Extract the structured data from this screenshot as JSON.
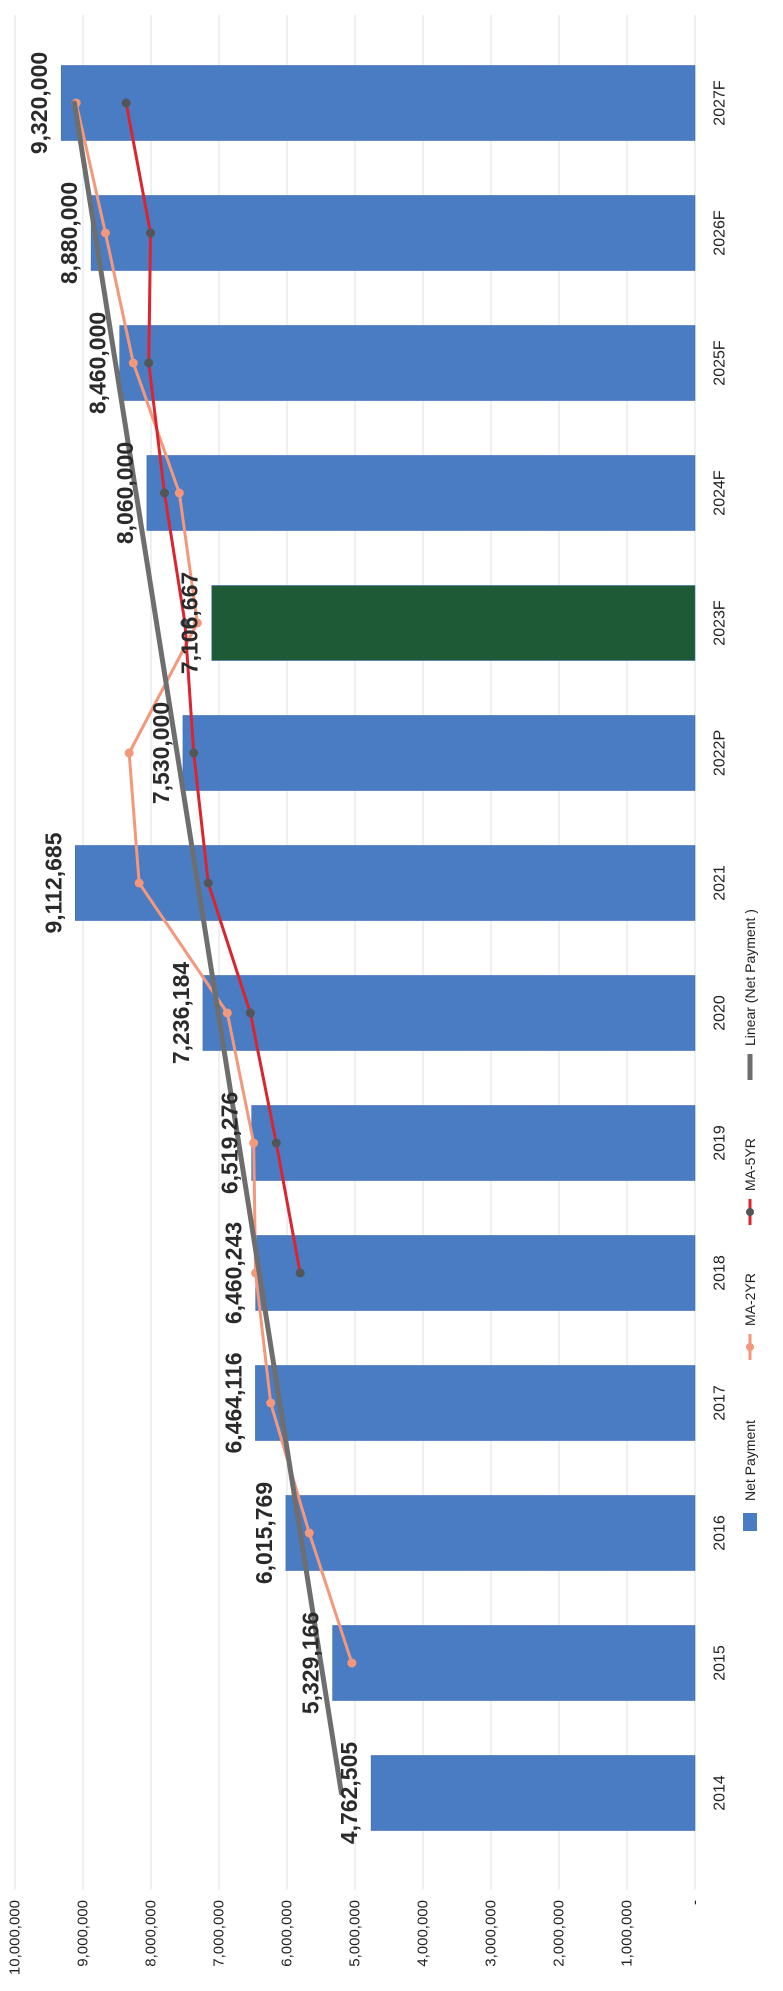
{
  "chart_data": {
    "type": "bar",
    "orientation": "horizontal",
    "page_rotation": "rotated 90 degrees clockwise",
    "categories": [
      "2014",
      "2015",
      "2016",
      "2017",
      "2018",
      "2019",
      "2020",
      "2021",
      "2022P",
      "2023F",
      "2024F",
      "2025F",
      "2026F",
      "2027F"
    ],
    "value_axis": {
      "min": 0,
      "max": 10000000,
      "ticks": [
        0,
        1000000,
        2000000,
        3000000,
        4000000,
        5000000,
        6000000,
        7000000,
        8000000,
        9000000,
        10000000
      ],
      "tick_labels": [
        "-",
        "1,000,000",
        "2,000,000",
        "3,000,000",
        "4,000,000",
        "5,000,000",
        "6,000,000",
        "7,000,000",
        "8,000,000",
        "9,000,000",
        "10,000,000"
      ]
    },
    "grid": true,
    "legend_position": "bottom",
    "series": [
      {
        "name": "Net Payment",
        "kind": "bar",
        "color": "#4a7cc4",
        "highlight_color": "#1d5a35",
        "highlight_category": "2023F",
        "values": [
          4762505,
          5329166,
          6015769,
          6464116,
          6460243,
          6519276,
          7236184,
          9112685,
          7530000,
          7106667,
          8060000,
          8460000,
          8880000,
          9320000
        ],
        "labels": [
          "4,762,505",
          "5,329,166",
          "6,015,769",
          "6,464,116",
          "6,460,243",
          "6,519,276",
          "7,236,184",
          "9,112,685",
          "7,530,000",
          "7,106,667",
          "8,060,000",
          "8,460,000",
          "8,880,000",
          "9,320,000"
        ]
      },
      {
        "name": "MA-2YR",
        "kind": "line",
        "color": "#f4977a",
        "values": [
          null,
          5045836,
          5672468,
          6239943,
          6462180,
          6489760,
          6877730,
          8174435,
          8321343,
          7318334,
          7583334,
          8260000,
          8670000,
          9100000
        ]
      },
      {
        "name": "MA-5YR",
        "kind": "line",
        "color": "#d9252f",
        "marker_color": "#555555",
        "values": [
          null,
          null,
          null,
          null,
          5806360,
          6157714,
          6539118,
          7158501,
          7371677,
          7501000,
          7802000,
          8033000,
          8007000,
          8365000
        ]
      },
      {
        "name": "Linear (Net Payment )",
        "kind": "trendline",
        "color": "#6e6e6e",
        "values": [
          5200000,
          5502000,
          5804000,
          6106000,
          6408000,
          6710000,
          7012000,
          7314000,
          7616000,
          7918000,
          8220000,
          8522000,
          8824000,
          9126000
        ]
      }
    ]
  }
}
